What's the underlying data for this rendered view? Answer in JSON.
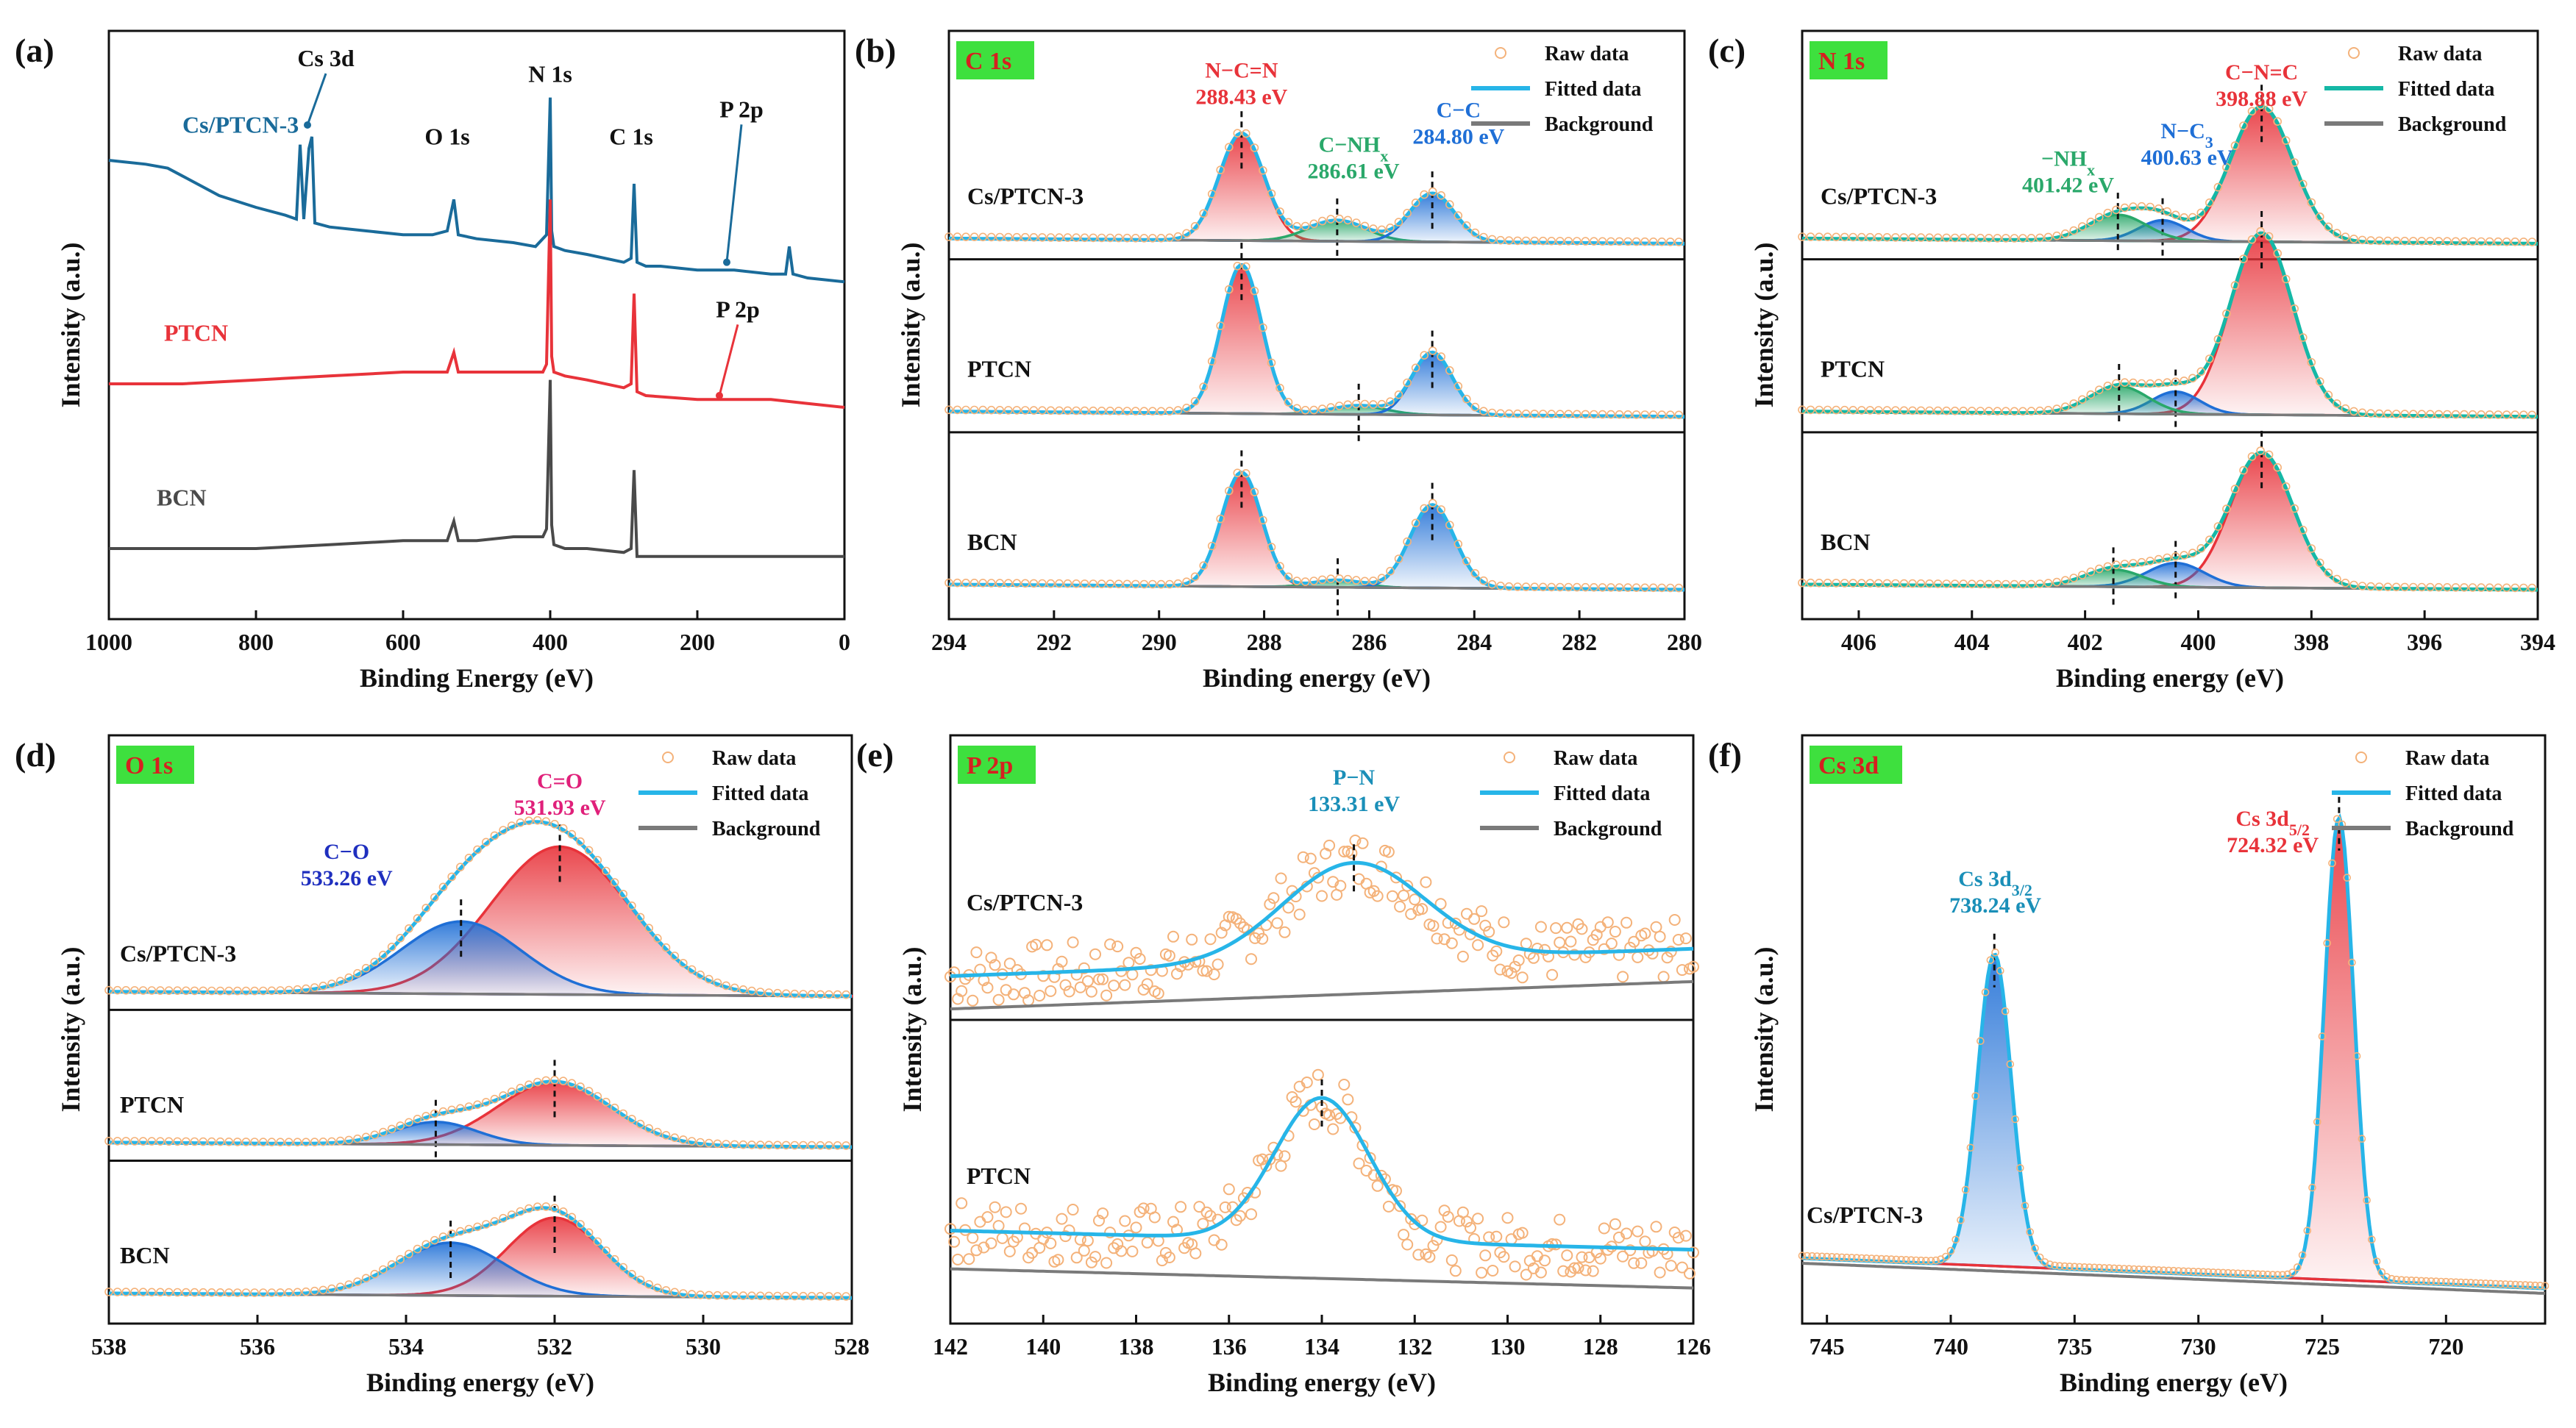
{
  "figure": {
    "panels": [
      {
        "letter": "(a)",
        "badge": ""
      },
      {
        "letter": "(b)",
        "badge": "C 1s"
      },
      {
        "letter": "(c)",
        "badge": "N 1s"
      },
      {
        "letter": "(d)",
        "badge": "O 1s"
      },
      {
        "letter": "(e)",
        "badge": "P 2p"
      },
      {
        "letter": "(f)",
        "badge": "Cs 3d"
      }
    ]
  },
  "colors": {
    "cs_ptcn": "#1a6b9a",
    "ptcn": "#e8333a",
    "bcn": "#4a4a4a",
    "raw": "#f4b27a",
    "fit_c": "#27b5e8",
    "fit_n": "#15b8a6",
    "background": "#7a7a7a",
    "red_peak": "#e8333a",
    "blue_peak": "#1f6fd6",
    "green_peak": "#2aa86a",
    "badge": "#3ee03e",
    "label_red": "#e8333a",
    "label_blue": "#1f6fd6",
    "label_green": "#2aa86a",
    "label_magenta": "#e0207a",
    "label_teal": "#1a8fb8"
  },
  "chart_data": [
    {
      "id": "a",
      "type": "line",
      "title": "",
      "xlabel": "Binding Energy (eV)",
      "ylabel": "Intensity (a.u.)",
      "xlim": [
        1000,
        0
      ],
      "xticks": [
        "1000",
        "800",
        "600",
        "400",
        "200",
        "0"
      ],
      "series": [
        {
          "name": "Cs/PTCN-3",
          "x": [
            1000,
            950,
            920,
            900,
            850,
            800,
            760,
            745,
            740,
            735,
            728,
            724,
            720,
            700,
            650,
            600,
            560,
            540,
            531,
            525,
            500,
            450,
            420,
            405,
            400,
            398,
            395,
            380,
            350,
            300,
            290,
            286,
            282,
            270,
            250,
            200,
            160,
            150,
            100,
            80,
            75,
            70,
            50,
            0
          ],
          "y": [
            0.62,
            0.61,
            0.6,
            0.58,
            0.53,
            0.5,
            0.48,
            0.47,
            0.66,
            0.47,
            0.65,
            0.68,
            0.46,
            0.45,
            0.44,
            0.43,
            0.43,
            0.44,
            0.52,
            0.43,
            0.42,
            0.41,
            0.4,
            0.43,
            0.78,
            0.44,
            0.4,
            0.39,
            0.38,
            0.36,
            0.37,
            0.56,
            0.36,
            0.35,
            0.35,
            0.34,
            0.34,
            0.34,
            0.33,
            0.33,
            0.4,
            0.33,
            0.32,
            0.31
          ]
        },
        {
          "name": "PTCN",
          "x": [
            1000,
            900,
            800,
            700,
            600,
            540,
            531,
            525,
            500,
            450,
            410,
            405,
            400,
            398,
            395,
            380,
            350,
            300,
            290,
            286,
            282,
            270,
            200,
            150,
            100,
            50,
            0
          ],
          "y": [
            0.05,
            0.05,
            0.06,
            0.07,
            0.08,
            0.08,
            0.13,
            0.08,
            0.08,
            0.08,
            0.08,
            0.1,
            0.52,
            0.12,
            0.08,
            0.07,
            0.06,
            0.04,
            0.05,
            0.28,
            0.03,
            0.02,
            0.01,
            0.01,
            0.01,
            0.0,
            -0.01
          ]
        },
        {
          "name": "BCN",
          "x": [
            1000,
            900,
            800,
            700,
            600,
            540,
            531,
            525,
            500,
            450,
            410,
            405,
            400,
            398,
            395,
            380,
            350,
            300,
            290,
            286,
            282,
            270,
            200,
            100,
            0
          ],
          "y": [
            -0.37,
            -0.37,
            -0.37,
            -0.36,
            -0.35,
            -0.35,
            -0.3,
            -0.35,
            -0.35,
            -0.34,
            -0.34,
            -0.32,
            0.06,
            -0.31,
            -0.36,
            -0.37,
            -0.37,
            -0.38,
            -0.37,
            -0.17,
            -0.39,
            -0.39,
            -0.39,
            -0.39,
            -0.39
          ]
        }
      ],
      "ylim": [
        -0.55,
        0.95
      ],
      "sample_labels": [
        {
          "text": "Cs/PTCN-3",
          "x": 900,
          "y": 0.69,
          "color": "#1a6b9a"
        },
        {
          "text": "PTCN",
          "x": 925,
          "y": 0.16,
          "color": "#e8333a"
        },
        {
          "text": "BCN",
          "x": 935,
          "y": -0.26,
          "color": "#4a4a4a"
        }
      ],
      "annotations": [
        {
          "text": "Cs 3d",
          "x": 705,
          "y": 0.86,
          "ax": 730,
          "ay": 0.71
        },
        {
          "text": "O 1s",
          "x": 540,
          "y": 0.66
        },
        {
          "text": "N 1s",
          "x": 400,
          "y": 0.82
        },
        {
          "text": "C 1s",
          "x": 290,
          "y": 0.66
        },
        {
          "text": "P 2p",
          "x": 140,
          "y": 0.73,
          "ax": 160,
          "ay": 0.36
        },
        {
          "text": "P 2p",
          "x": 145,
          "y": 0.22,
          "ax": 170,
          "ay": 0.02,
          "color": "#e8333a"
        }
      ]
    },
    {
      "id": "b",
      "type": "line",
      "title": "C 1s",
      "xlabel": "Binding energy (eV)",
      "ylabel": "Intensity (a.u.)",
      "xlim": [
        294,
        280
      ],
      "xticks": [
        "294",
        "292",
        "290",
        "288",
        "286",
        "284",
        "282",
        "280"
      ],
      "legend": [
        "Raw data",
        "Fitted data",
        "Background"
      ],
      "offsets": [
        2.0,
        1.0,
        0.0
      ],
      "samples": [
        "Cs/PTCN-3",
        "PTCN",
        "BCN"
      ],
      "peaks": [
        {
          "sample": "Cs/PTCN-3",
          "components": [
            {
              "label": "N−C=N",
              "center": 288.43,
              "height": 0.62,
              "fwhm": 1.0,
              "color": "#e8333a"
            },
            {
              "label": "C−NH",
              "center": 286.61,
              "height": 0.12,
              "fwhm": 1.3,
              "color": "#2aa86a"
            },
            {
              "label": "C−C",
              "center": 284.8,
              "height": 0.28,
              "fwhm": 1.0,
              "color": "#1f6fd6"
            }
          ]
        },
        {
          "sample": "PTCN",
          "components": [
            {
              "center": 288.43,
              "height": 0.86,
              "fwhm": 0.9,
              "color": "#e8333a"
            },
            {
              "center": 286.2,
              "height": 0.05,
              "fwhm": 1.2,
              "color": "#2aa86a"
            },
            {
              "center": 284.8,
              "height": 0.36,
              "fwhm": 0.9,
              "color": "#1f6fd6"
            }
          ]
        },
        {
          "sample": "BCN",
          "components": [
            {
              "center": 288.43,
              "height": 0.66,
              "fwhm": 0.9,
              "color": "#e8333a"
            },
            {
              "center": 286.6,
              "height": 0.04,
              "fwhm": 1.1,
              "color": "#2aa86a"
            },
            {
              "center": 284.8,
              "height": 0.48,
              "fwhm": 1.0,
              "color": "#1f6fd6"
            }
          ]
        }
      ],
      "labels": [
        {
          "text": "N−C=N",
          "sub": "",
          "value": "288.43 eV",
          "color": "#e8333a",
          "x": 288.43,
          "y": 2.98
        },
        {
          "text": "C−NH",
          "sub": "x",
          "value": "286.61 eV",
          "color": "#2aa86a",
          "x": 286.3,
          "y": 2.55
        },
        {
          "text": "C−C",
          "sub": "",
          "value": "284.80 eV",
          "color": "#1f6fd6",
          "x": 284.3,
          "y": 2.75
        }
      ],
      "ylim": [
        -0.15,
        3.25
      ]
    },
    {
      "id": "c",
      "type": "line",
      "title": "N 1s",
      "xlabel": "Binding energy (eV)",
      "ylabel": "Intensity (a.u.)",
      "xlim": [
        407,
        394
      ],
      "xticks": [
        "406",
        "404",
        "402",
        "400",
        "398",
        "396",
        "394"
      ],
      "legend": [
        "Raw data",
        "Fitted data",
        "Background"
      ],
      "offsets": [
        2.0,
        1.0,
        0.0
      ],
      "samples": [
        "Cs/PTCN-3",
        "PTCN",
        "BCN"
      ],
      "peaks": [
        {
          "sample": "Cs/PTCN-3",
          "components": [
            {
              "center": 398.88,
              "height": 0.78,
              "fwhm": 1.3,
              "color": "#e8333a"
            },
            {
              "center": 400.63,
              "height": 0.12,
              "fwhm": 1.0,
              "color": "#1f6fd6"
            },
            {
              "center": 401.42,
              "height": 0.15,
              "fwhm": 1.2,
              "color": "#2aa86a"
            }
          ]
        },
        {
          "sample": "PTCN",
          "components": [
            {
              "center": 398.88,
              "height": 1.05,
              "fwhm": 1.3,
              "color": "#e8333a"
            },
            {
              "center": 400.4,
              "height": 0.13,
              "fwhm": 1.0,
              "color": "#1f6fd6"
            },
            {
              "center": 401.4,
              "height": 0.16,
              "fwhm": 1.2,
              "color": "#2aa86a"
            }
          ]
        },
        {
          "sample": "BCN",
          "components": [
            {
              "center": 398.88,
              "height": 0.78,
              "fwhm": 1.3,
              "color": "#e8333a"
            },
            {
              "center": 400.4,
              "height": 0.14,
              "fwhm": 1.2,
              "color": "#1f6fd6"
            },
            {
              "center": 401.5,
              "height": 0.1,
              "fwhm": 1.2,
              "color": "#2aa86a"
            }
          ]
        }
      ],
      "labels": [
        {
          "text": "C−N=C",
          "sub": "",
          "value": "398.88 eV",
          "color": "#e8333a",
          "x": 398.88,
          "y": 2.97
        },
        {
          "text": "N−C",
          "sub": "3",
          "value": "400.63 eV",
          "color": "#1f6fd6",
          "x": 400.2,
          "y": 2.63
        },
        {
          "text": "−NH",
          "sub": "x",
          "value": "401.42 eV",
          "color": "#2aa86a",
          "x": 402.3,
          "y": 2.47
        }
      ],
      "ylim": [
        -0.15,
        3.25
      ]
    },
    {
      "id": "d",
      "type": "line",
      "title": "O 1s",
      "xlabel": "Binding energy (eV)",
      "ylabel": "Intensity (a.u.)",
      "xlim": [
        538,
        528
      ],
      "xticks": [
        "538",
        "536",
        "534",
        "532",
        "530",
        "528"
      ],
      "legend": [
        "Raw data",
        "Fitted data",
        "Background"
      ],
      "offsets": [
        2.0,
        1.0,
        0.0
      ],
      "samples": [
        "Cs/PTCN-3",
        "PTCN",
        "BCN"
      ],
      "peaks": [
        {
          "sample": "Cs/PTCN-3",
          "components": [
            {
              "center": 531.93,
              "height": 0.98,
              "fwhm": 2.2,
              "color": "#e8333a"
            },
            {
              "center": 533.26,
              "height": 0.48,
              "fwhm": 1.9,
              "color": "#1f6fd6"
            }
          ]
        },
        {
          "sample": "PTCN",
          "components": [
            {
              "center": 532.0,
              "height": 0.42,
              "fwhm": 1.8,
              "color": "#e8333a"
            },
            {
              "center": 533.6,
              "height": 0.15,
              "fwhm": 1.3,
              "color": "#1f6fd6"
            }
          ]
        },
        {
          "sample": "BCN",
          "components": [
            {
              "center": 532.0,
              "height": 0.52,
              "fwhm": 1.5,
              "color": "#e8333a"
            },
            {
              "center": 533.4,
              "height": 0.35,
              "fwhm": 1.7,
              "color": "#1f6fd6"
            }
          ]
        }
      ],
      "labels": [
        {
          "text": "C=O",
          "sub": "",
          "value": "531.93 eV",
          "color": "#e0207a",
          "x": 531.93,
          "y": 3.4
        },
        {
          "text": "C−O",
          "sub": "",
          "value": "533.26 eV",
          "color": "#1f2fbf",
          "x": 534.8,
          "y": 2.93
        }
      ],
      "ylim": [
        -0.15,
        3.75
      ]
    },
    {
      "id": "e",
      "type": "scatter",
      "title": "P 2p",
      "xlabel": "Binding energy (eV)",
      "ylabel": "Intensity (a.u.)",
      "xlim": [
        142,
        126
      ],
      "xticks": [
        "142",
        "140",
        "138",
        "136",
        "134",
        "132",
        "130",
        "128",
        "126"
      ],
      "legend": [
        "Raw data",
        "Fitted data",
        "Background"
      ],
      "samples": [
        "Cs/PTCN-3",
        "PTCN"
      ],
      "peaks": [
        {
          "sample": "Cs/PTCN-3",
          "offset": 1.0,
          "center": 133.31,
          "height": 0.36,
          "fwhm": 3.6,
          "bg": [
            0.0,
            0.1
          ]
        },
        {
          "sample": "PTCN",
          "offset": 0.0,
          "center": 134.0,
          "height": 0.52,
          "fwhm": 2.4,
          "bg": [
            0.05,
            -0.02
          ]
        }
      ],
      "labels": [
        {
          "text": "P−N",
          "sub": "",
          "value": "133.31 eV",
          "color": "#1a8fb8",
          "x": 133.31,
          "y": 1.82
        }
      ],
      "ylim": [
        -0.15,
        2.0
      ]
    },
    {
      "id": "f",
      "type": "line",
      "title": "Cs 3d",
      "xlabel": "Binding energy (eV)",
      "ylabel": "Intensity (a.u.)",
      "xlim": [
        746,
        716
      ],
      "xticks": [
        "745",
        "740",
        "735",
        "730",
        "725",
        "720"
      ],
      "legend": [
        "Raw data",
        "Fitted data",
        "Background"
      ],
      "samples": [
        "Cs/PTCN-3"
      ],
      "peaks": [
        {
          "sample": "Cs/PTCN-3",
          "components": [
            {
              "center": 738.24,
              "height": 0.62,
              "fwhm": 1.6,
              "color": "#1f6fd6"
            },
            {
              "center": 724.32,
              "height": 0.92,
              "fwhm": 1.4,
              "color": "#e8333a"
            }
          ]
        }
      ],
      "labels": [
        {
          "text": "Cs 3d",
          "sub": "3/2",
          "value": "738.24 eV",
          "color": "#1a8fb8",
          "x": 738.2,
          "y": 0.82
        },
        {
          "text": "Cs 3d",
          "sub": "5/2",
          "value": "724.32 eV",
          "color": "#e8333a",
          "x": 727.0,
          "y": 0.94
        }
      ],
      "ylim": [
        -0.05,
        1.12
      ]
    }
  ]
}
